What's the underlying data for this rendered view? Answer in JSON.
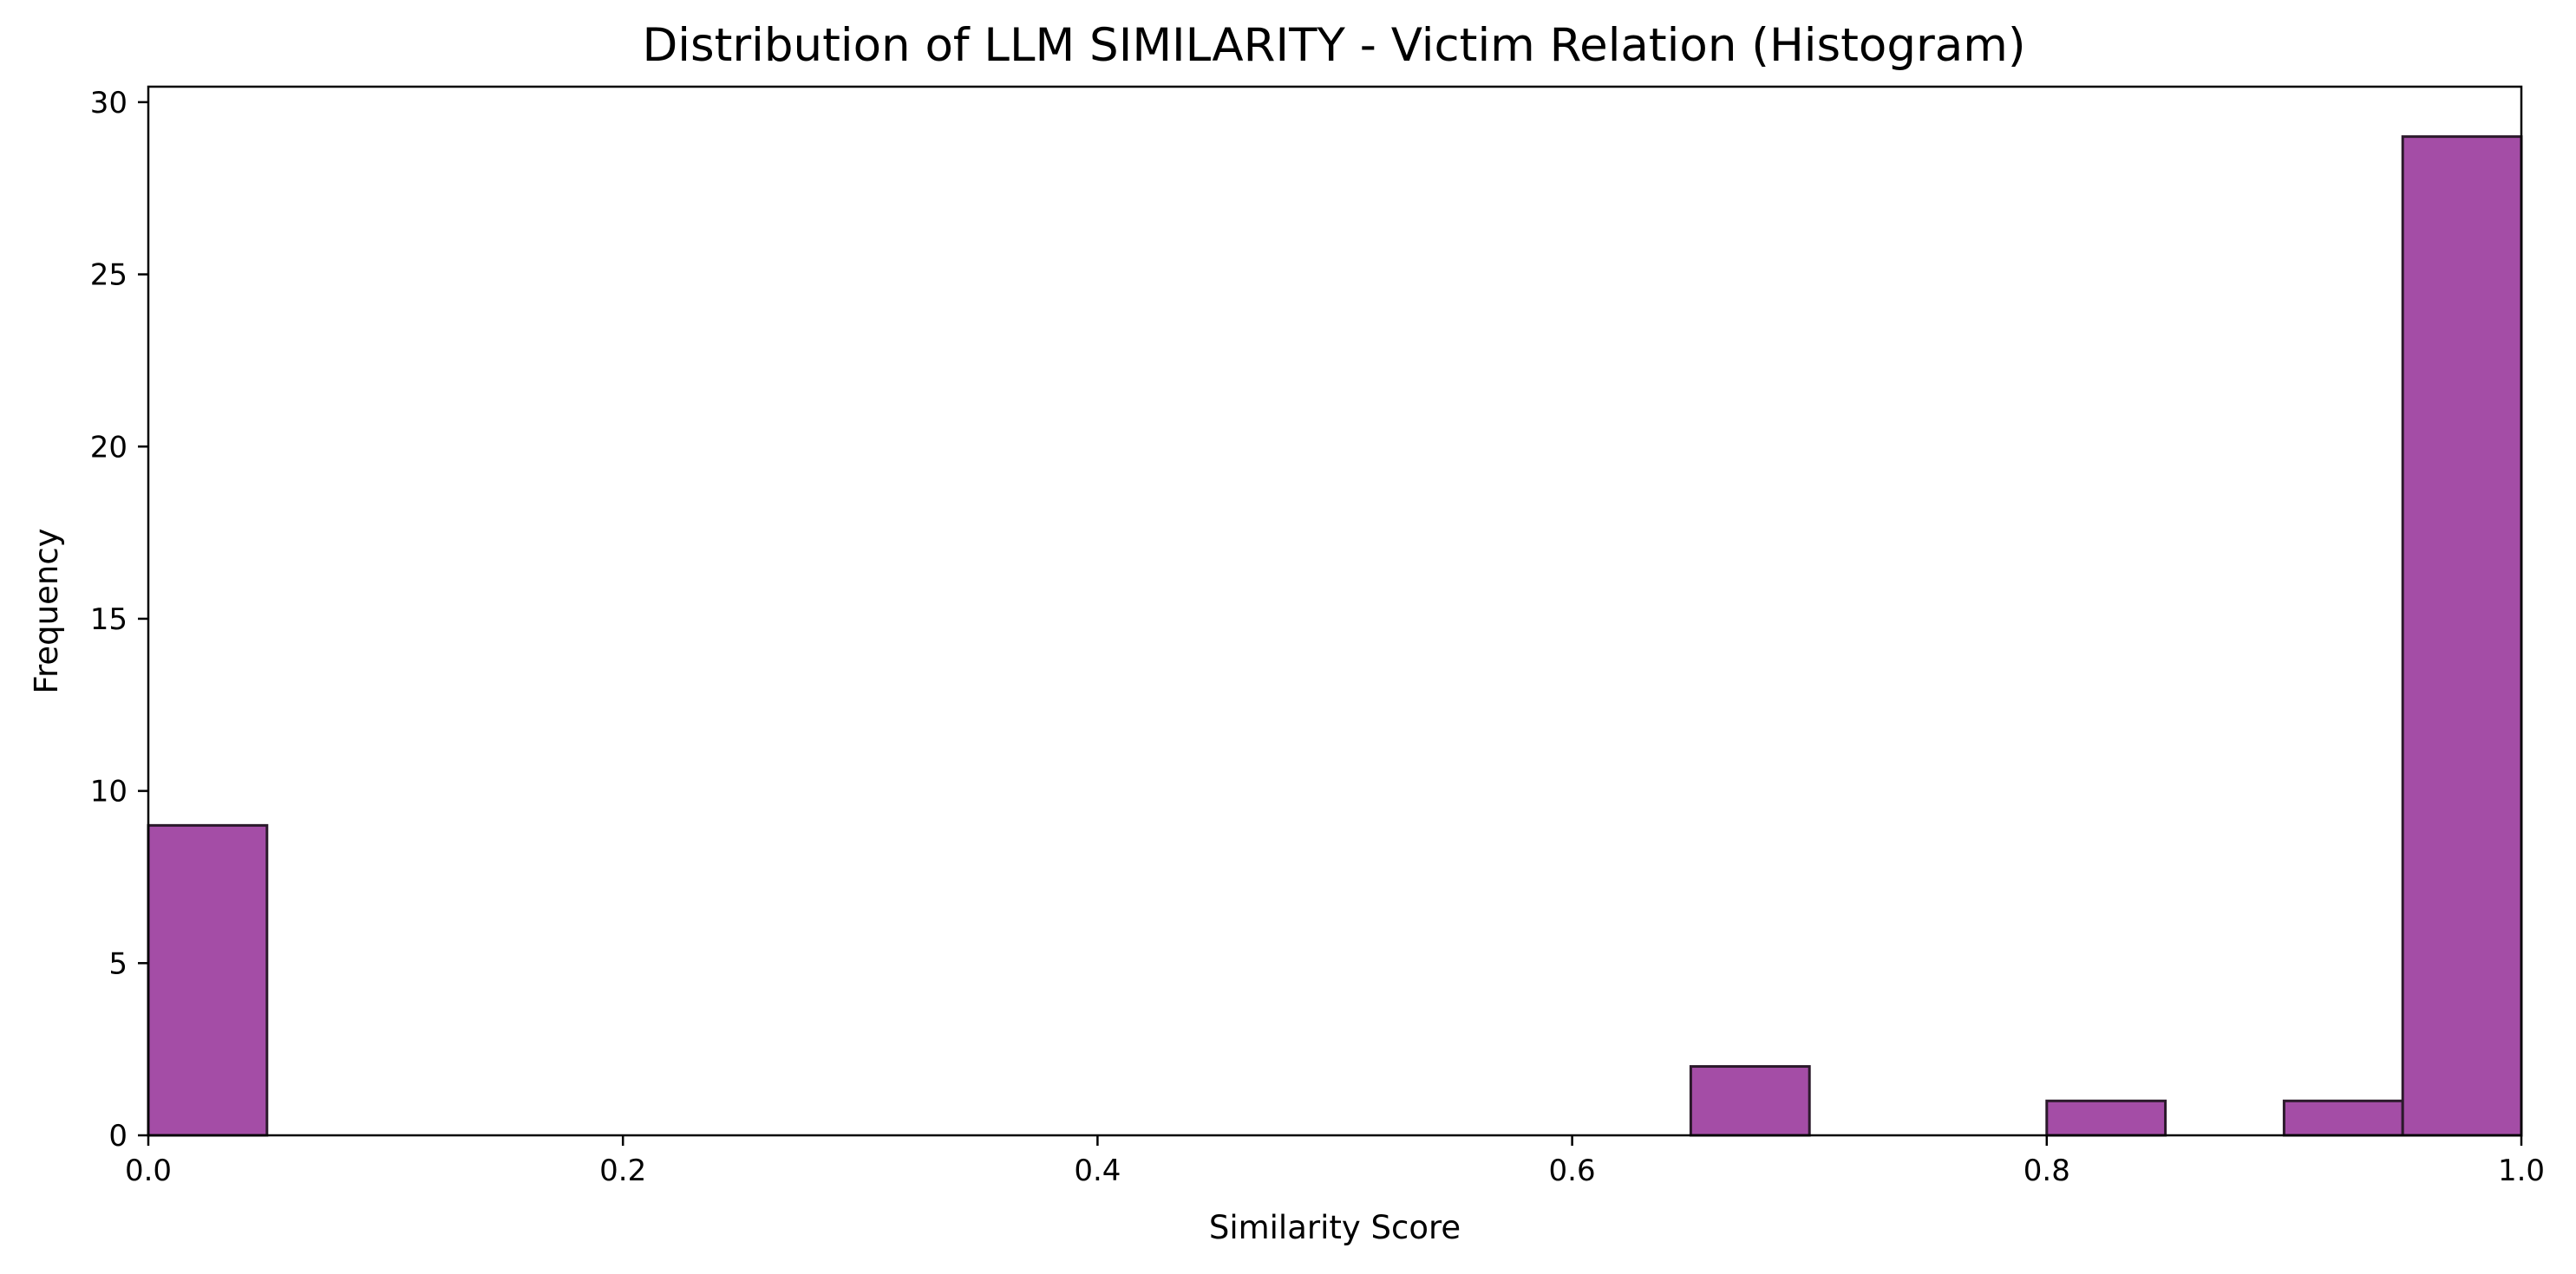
{
  "chart_data": {
    "type": "bar",
    "title": "Distribution of LLM SIMILARITY - Victim Relation (Histogram)",
    "xlabel": "Similarity Score",
    "ylabel": "Frequency",
    "xlim": [
      0.0,
      1.0
    ],
    "ylim": [
      0,
      30.45
    ],
    "x_ticks": [
      "0.0",
      "0.2",
      "0.4",
      "0.6",
      "0.8",
      "1.0"
    ],
    "y_ticks": [
      "0",
      "5",
      "10",
      "15",
      "20",
      "25",
      "30"
    ],
    "bin_edges": [
      0.0,
      0.05,
      0.1,
      0.15,
      0.2,
      0.25,
      0.3,
      0.35,
      0.4,
      0.45,
      0.5,
      0.55,
      0.6,
      0.65,
      0.7,
      0.75,
      0.8,
      0.85,
      0.9,
      0.95,
      1.0
    ],
    "values": [
      9,
      0,
      0,
      0,
      0,
      0,
      0,
      0,
      0,
      0,
      0,
      0,
      0,
      2,
      0,
      0,
      1,
      0,
      1,
      29
    ],
    "grid": false,
    "bar_color": "#a44da6",
    "edge_color": "#2b1a2b"
  }
}
